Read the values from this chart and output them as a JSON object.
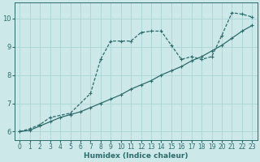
{
  "xlabel": "Humidex (Indice chaleur)",
  "bg_color": "#cce8e8",
  "line_color": "#2d6b6b",
  "grid_color": "#aad4d4",
  "xlim": [
    -0.5,
    23.5
  ],
  "ylim": [
    5.7,
    10.55
  ],
  "yticks": [
    6,
    7,
    8,
    9,
    10
  ],
  "xticks": [
    0,
    1,
    2,
    3,
    4,
    5,
    6,
    7,
    8,
    9,
    10,
    11,
    12,
    13,
    14,
    15,
    16,
    17,
    18,
    19,
    20,
    21,
    22,
    23
  ],
  "line1_x": [
    0,
    1,
    2,
    3,
    4,
    5,
    6,
    7,
    8,
    9,
    10,
    11,
    12,
    13,
    14,
    15,
    16,
    17,
    18,
    19,
    20,
    21,
    22,
    23
  ],
  "line1_y": [
    6.0,
    6.05,
    6.2,
    6.35,
    6.5,
    6.6,
    6.7,
    6.85,
    7.0,
    7.15,
    7.3,
    7.5,
    7.65,
    7.8,
    8.0,
    8.15,
    8.3,
    8.5,
    8.65,
    8.85,
    9.05,
    9.3,
    9.55,
    9.75
  ],
  "line2_x": [
    0,
    1,
    2,
    3,
    5,
    7,
    8,
    9,
    10,
    11,
    12,
    13,
    14,
    15,
    16,
    17,
    18,
    19,
    20,
    21,
    22,
    23
  ],
  "line2_y": [
    6.0,
    6.1,
    6.25,
    6.5,
    6.65,
    7.35,
    8.55,
    9.2,
    9.2,
    9.2,
    9.5,
    9.55,
    9.55,
    9.05,
    8.55,
    8.65,
    8.55,
    8.65,
    9.4,
    10.2,
    10.15,
    10.05
  ]
}
